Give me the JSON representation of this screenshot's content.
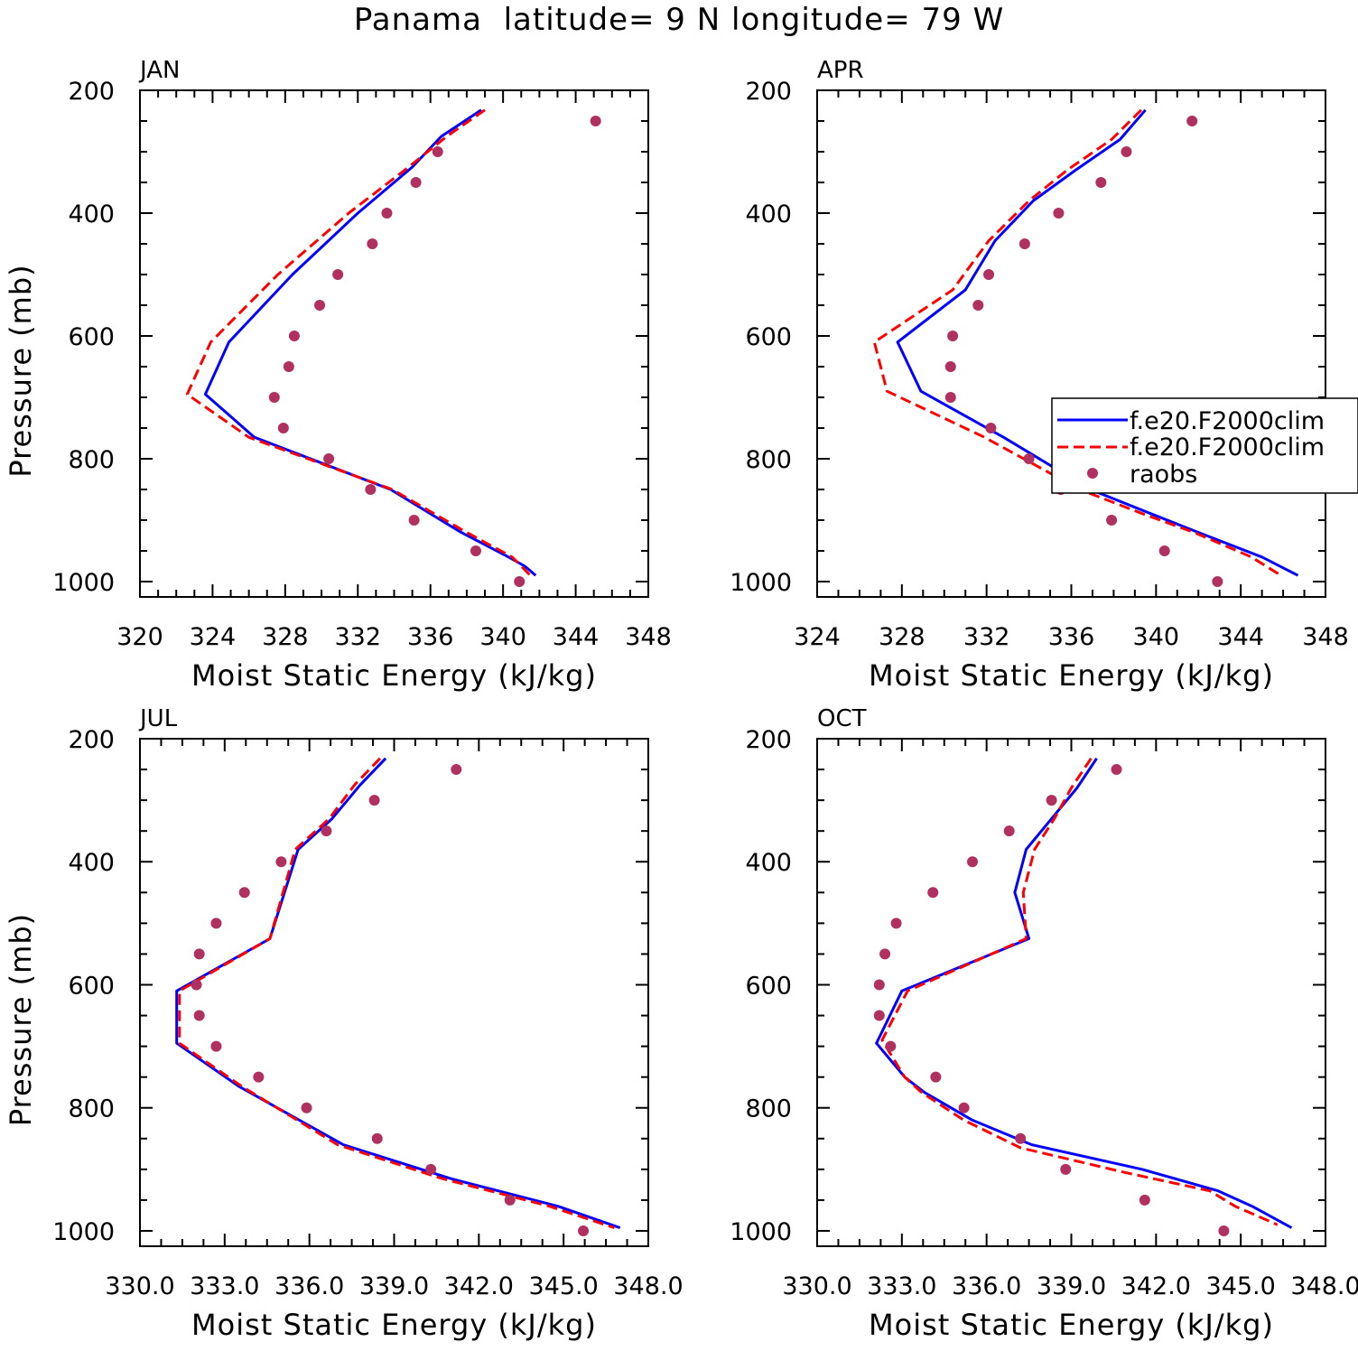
{
  "figure": {
    "title": "Panama  latitude= 9 N longitude= 79 W"
  },
  "colors": {
    "model1": "#0000ff",
    "model2": "#ff0000",
    "raobs": "#b03060",
    "axes": "#000000"
  },
  "legend": {
    "entries": [
      "f.e20.F2000clim",
      "f.e20.F2000clim",
      "raobs"
    ],
    "placement": "right-middle of APR panel"
  },
  "chart_data": [
    {
      "type": "line",
      "label": "JAN",
      "xlabel": "Moist Static Energy (kJ/kg)",
      "ylabel": "Pressure (mb)",
      "xlim": [
        320,
        348
      ],
      "ylim": [
        1000,
        200
      ],
      "xticks": [
        320,
        324,
        328,
        332,
        336,
        340,
        344,
        348
      ],
      "xtick_labels": [
        "320",
        "324",
        "328",
        "332",
        "336",
        "340",
        "344",
        "348"
      ],
      "yticks": [
        200,
        400,
        600,
        800,
        1000
      ],
      "ytick_labels": [
        "200",
        "400",
        "600",
        "800",
        "1000"
      ],
      "series": [
        {
          "kind": "model1",
          "p": [
            232,
            275,
            325,
            400,
            500,
            610,
            695,
            765,
            850,
            920,
            960,
            975,
            990
          ],
          "values": [
            338.8,
            336.6,
            335.0,
            332.0,
            328.4,
            324.9,
            323.6,
            326.3,
            333.8,
            337.7,
            340.3,
            341.2,
            341.8
          ]
        },
        {
          "kind": "model2",
          "p": [
            232,
            275,
            325,
            400,
            500,
            610,
            695,
            765,
            850,
            920,
            960,
            975,
            990
          ],
          "values": [
            339.0,
            336.9,
            334.8,
            331.5,
            327.6,
            323.9,
            322.6,
            326.0,
            333.9,
            338.0,
            340.5,
            341.0,
            341.5
          ]
        },
        {
          "kind": "raobs",
          "p": [
            250,
            300,
            350,
            400,
            450,
            500,
            550,
            600,
            650,
            700,
            750,
            800,
            850,
            900,
            950,
            1000
          ],
          "values": [
            345.1,
            336.4,
            335.2,
            333.6,
            332.8,
            330.9,
            329.9,
            328.5,
            328.2,
            327.4,
            327.9,
            330.4,
            332.7,
            335.1,
            338.5,
            340.9
          ]
        }
      ]
    },
    {
      "type": "line",
      "label": "APR",
      "xlabel": "Moist Static Energy (kJ/kg)",
      "ylabel": "",
      "xlim": [
        324,
        348
      ],
      "ylim": [
        1000,
        200
      ],
      "xticks": [
        324,
        328,
        332,
        336,
        340,
        344,
        348
      ],
      "xtick_labels": [
        "324",
        "328",
        "332",
        "336",
        "340",
        "344",
        "348"
      ],
      "yticks": [
        200,
        400,
        600,
        800,
        1000
      ],
      "ytick_labels": [
        "200",
        "400",
        "600",
        "800",
        "1000"
      ],
      "series": [
        {
          "kind": "model1",
          "p": [
            232,
            280,
            330,
            380,
            445,
            525,
            610,
            690,
            765,
            850,
            890,
            920,
            960,
            990
          ],
          "values": [
            339.5,
            338.3,
            336.2,
            334.2,
            332.4,
            331.0,
            327.8,
            328.9,
            332.8,
            336.9,
            339.8,
            342.0,
            345.0,
            346.7
          ]
        },
        {
          "kind": "model2",
          "p": [
            232,
            280,
            330,
            380,
            445,
            525,
            610,
            690,
            765,
            850,
            890,
            920,
            960,
            990
          ],
          "values": [
            339.3,
            337.9,
            335.8,
            334.0,
            332.1,
            330.4,
            326.7,
            327.3,
            331.9,
            336.4,
            339.4,
            341.8,
            344.5,
            345.9
          ]
        },
        {
          "kind": "raobs",
          "p": [
            250,
            300,
            350,
            400,
            450,
            500,
            550,
            600,
            650,
            700,
            750,
            800,
            850,
            900,
            950,
            1000
          ],
          "values": [
            341.7,
            338.6,
            337.4,
            335.4,
            333.8,
            332.1,
            331.6,
            330.4,
            330.3,
            330.3,
            332.2,
            334.0,
            335.5,
            337.9,
            340.4,
            342.9
          ]
        }
      ]
    },
    {
      "type": "line",
      "label": "JUL",
      "xlabel": "Moist Static Energy (kJ/kg)",
      "ylabel": "Pressure (mb)",
      "xlim": [
        330,
        348
      ],
      "ylim": [
        1000,
        200
      ],
      "xticks": [
        330,
        333,
        336,
        339,
        342,
        345,
        348
      ],
      "xtick_labels": [
        "330.0",
        "333.0",
        "336.0",
        "339.0",
        "342.0",
        "345.0",
        "348.0"
      ],
      "yticks": [
        200,
        400,
        600,
        800,
        1000
      ],
      "ytick_labels": [
        "200",
        "400",
        "600",
        "800",
        "1000"
      ],
      "series": [
        {
          "kind": "model1",
          "p": [
            232,
            275,
            330,
            380,
            525,
            610,
            695,
            765,
            860,
            915,
            960,
            995
          ],
          "values": [
            338.7,
            337.8,
            336.8,
            335.6,
            334.6,
            331.3,
            331.3,
            333.5,
            337.2,
            341.0,
            344.8,
            347.0
          ]
        },
        {
          "kind": "model2",
          "p": [
            232,
            275,
            330,
            380,
            525,
            610,
            695,
            765,
            860,
            915,
            960,
            995
          ],
          "values": [
            338.5,
            337.6,
            336.7,
            335.5,
            334.6,
            331.4,
            331.4,
            333.6,
            337.0,
            340.7,
            344.5,
            346.8
          ]
        },
        {
          "kind": "raobs",
          "p": [
            250,
            300,
            350,
            400,
            450,
            500,
            550,
            600,
            650,
            700,
            750,
            800,
            850,
            900,
            950,
            1000
          ],
          "values": [
            341.2,
            338.3,
            336.6,
            335.0,
            333.7,
            332.7,
            332.1,
            332.0,
            332.1,
            332.7,
            334.2,
            335.9,
            338.4,
            340.3,
            343.1,
            345.7
          ]
        }
      ]
    },
    {
      "type": "line",
      "label": "OCT",
      "xlabel": "Moist Static Energy (kJ/kg)",
      "ylabel": "",
      "xlim": [
        330,
        348
      ],
      "ylim": [
        1000,
        200
      ],
      "xticks": [
        330,
        333,
        336,
        339,
        342,
        345,
        348
      ],
      "xtick_labels": [
        "330.0",
        "333.0",
        "336.0",
        "339.0",
        "342.0",
        "345.0",
        "348.0"
      ],
      "yticks": [
        200,
        400,
        600,
        800,
        1000
      ],
      "ytick_labels": [
        "200",
        "400",
        "600",
        "800",
        "1000"
      ],
      "series": [
        {
          "kind": "model1",
          "p": [
            232,
            280,
            330,
            380,
            450,
            525,
            610,
            695,
            750,
            775,
            820,
            860,
            900,
            935,
            960,
            995
          ],
          "values": [
            339.9,
            339.2,
            338.3,
            337.4,
            337.0,
            337.5,
            333.0,
            332.1,
            333.1,
            333.8,
            335.5,
            337.6,
            341.5,
            344.2,
            345.4,
            346.8
          ]
        },
        {
          "kind": "model2",
          "p": [
            232,
            280,
            330,
            380,
            450,
            525,
            610,
            690,
            750,
            775,
            820,
            865,
            905,
            935,
            960,
            990
          ],
          "values": [
            339.7,
            339.0,
            338.4,
            337.7,
            337.3,
            337.4,
            333.2,
            332.3,
            333.1,
            333.7,
            335.2,
            337.2,
            340.9,
            343.9,
            344.8,
            346.3
          ]
        },
        {
          "kind": "raobs",
          "p": [
            250,
            300,
            350,
            400,
            450,
            500,
            550,
            600,
            650,
            700,
            750,
            800,
            850,
            900,
            950,
            1000
          ],
          "values": [
            340.6,
            338.3,
            336.8,
            335.5,
            334.1,
            332.8,
            332.4,
            332.2,
            332.2,
            332.6,
            334.2,
            335.2,
            337.2,
            338.8,
            341.6,
            344.4
          ]
        }
      ]
    }
  ]
}
